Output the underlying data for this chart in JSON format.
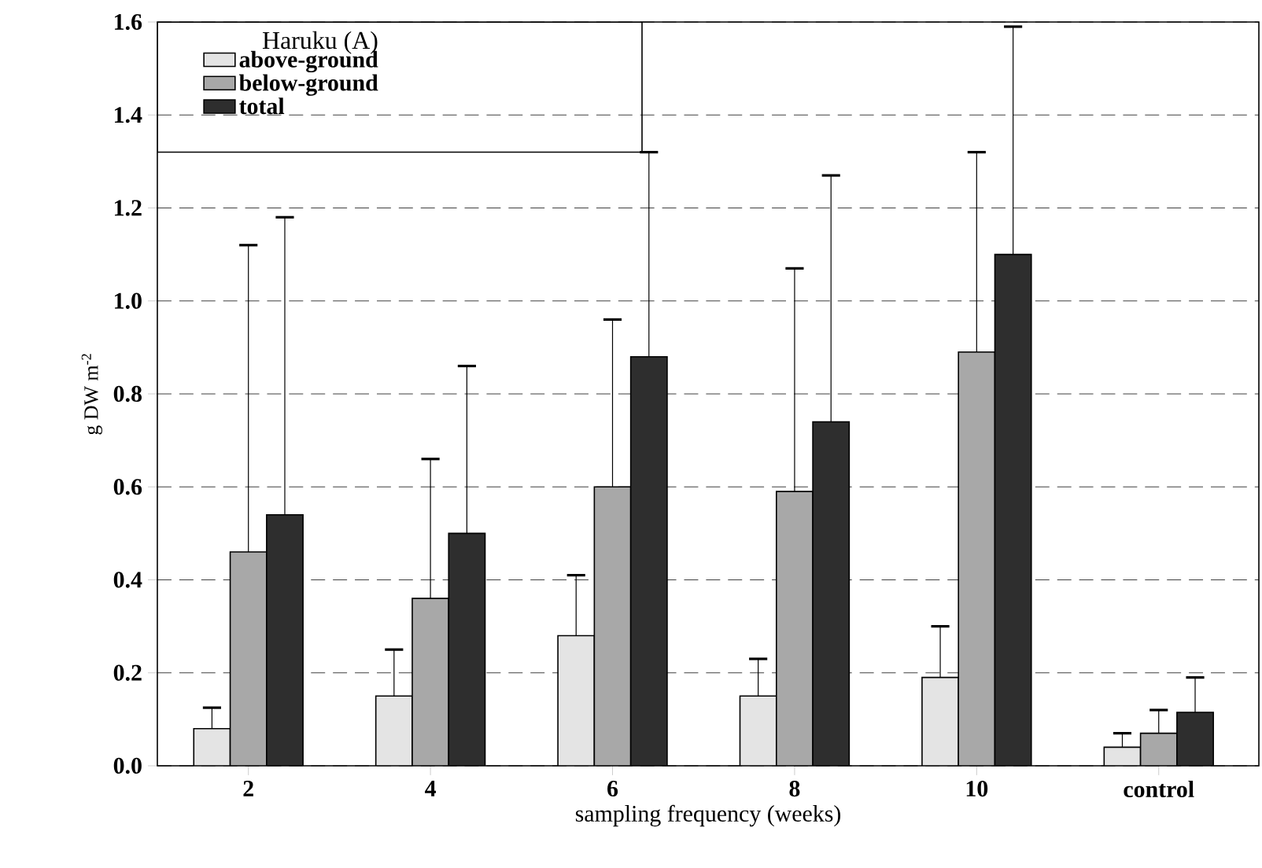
{
  "chart_data": {
    "type": "bar",
    "xlabel": "sampling frequency  (weeks)",
    "ylabel": "g DW m$^{-2}$",
    "legend_title": "Haruku (A)",
    "categories": [
      "2",
      "4",
      "6",
      "8",
      "10",
      "control"
    ],
    "series": [
      {
        "name": "above-ground",
        "color": "#e4e4e4",
        "values": [
          0.08,
          0.15,
          0.28,
          0.15,
          0.19,
          0.04
        ],
        "errors": [
          [
            0.08,
            0.125
          ],
          [
            0.15,
            0.25
          ],
          [
            0.28,
            0.41
          ],
          [
            0.15,
            0.23
          ],
          [
            0.19,
            0.3
          ],
          [
            0.04,
            0.07
          ]
        ]
      },
      {
        "name": "below-ground",
        "color": "#a8a8a8",
        "values": [
          0.46,
          0.36,
          0.6,
          0.59,
          0.89,
          0.07
        ],
        "errors": [
          [
            0.46,
            1.12
          ],
          [
            0.36,
            0.66
          ],
          [
            0.6,
            0.96
          ],
          [
            0.59,
            1.07
          ],
          [
            0.89,
            1.32
          ],
          [
            0.07,
            0.12
          ]
        ]
      },
      {
        "name": "total",
        "color": "#2e2e2e",
        "values": [
          0.54,
          0.5,
          0.88,
          0.74,
          1.1,
          0.115
        ],
        "errors": [
          [
            0.54,
            1.18
          ],
          [
            0.5,
            0.86
          ],
          [
            0.88,
            1.32
          ],
          [
            0.74,
            1.27
          ],
          [
            1.1,
            1.59
          ],
          [
            0.115,
            0.19
          ]
        ]
      }
    ],
    "ylim": [
      0,
      1.6
    ],
    "yticks": [
      {
        "value": 0,
        "label": "0.0"
      },
      0.2,
      0.4,
      0.6,
      0.8,
      {
        "value": 1,
        "label": "1.0"
      },
      1.2,
      1.4,
      1.6
    ],
    "grid": "y",
    "legend": "top left"
  }
}
